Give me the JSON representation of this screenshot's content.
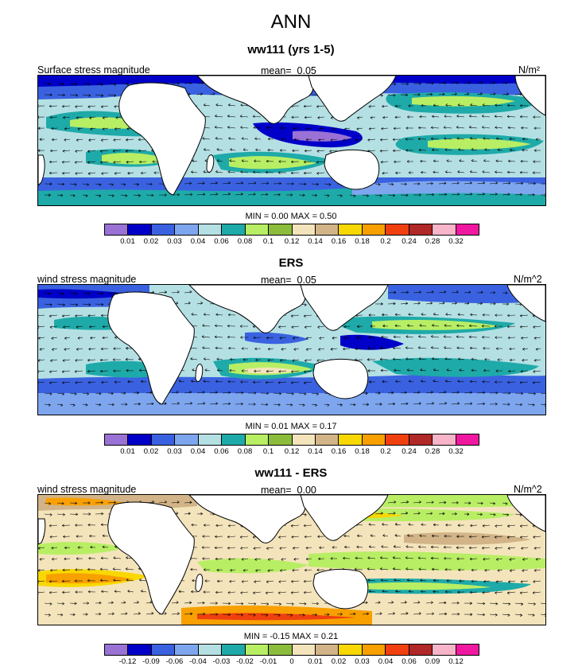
{
  "title": "ANN",
  "panels": [
    {
      "title": "ww111 (yrs 1-5)",
      "left_label": "Surface stress magnitude",
      "mean_label": "mean=",
      "mean_value": "0.05",
      "units": "N/m²",
      "stats": "MIN =  0.00 MAX =  0.50",
      "palette": "positive"
    },
    {
      "title": "ERS",
      "left_label": "wind stress magnitude",
      "mean_label": "mean=",
      "mean_value": "0.05",
      "units": "N/m^2",
      "stats": "MIN =  0.01 MAX =  0.17",
      "palette": "positive"
    },
    {
      "title": "ww111 - ERS",
      "left_label": "wind stress magnitude",
      "mean_label": "mean=",
      "mean_value": "0.00",
      "units": "N/m^2",
      "stats": "MIN = -0.15 MAX =  0.21",
      "palette": "difference"
    }
  ],
  "colorbar_positive": {
    "levels": [
      "0.01",
      "0.02",
      "0.03",
      "0.04",
      "0.06",
      "0.08",
      "0.1",
      "0.12",
      "0.14",
      "0.16",
      "0.18",
      "0.2",
      "0.24",
      "0.28",
      "0.32"
    ],
    "colors": [
      "#9a72d6",
      "#0000c8",
      "#3a62e0",
      "#7ea6ee",
      "#b4e0e4",
      "#1eaaa8",
      "#b8ee64",
      "#8cbc3c",
      "#f4e4bc",
      "#d2b488",
      "#f8d800",
      "#f8a000",
      "#f04010",
      "#b02828",
      "#f8b4c8",
      "#f018a0"
    ]
  },
  "colorbar_difference": {
    "levels": [
      "-0.12",
      "-0.09",
      "-0.06",
      "-0.04",
      "-0.03",
      "-0.02",
      "-0.01",
      "0",
      "0.01",
      "0.02",
      "0.03",
      "0.04",
      "0.06",
      "0.09",
      "0.12"
    ],
    "colors": [
      "#9a72d6",
      "#0000c8",
      "#3a62e0",
      "#7ea6ee",
      "#b4e0e4",
      "#1eaaa8",
      "#b8ee64",
      "#8cbc3c",
      "#f4e4bc",
      "#d2b488",
      "#f8d800",
      "#f8a000",
      "#f04010",
      "#b02828",
      "#f8b4c8",
      "#f018a0"
    ]
  }
}
